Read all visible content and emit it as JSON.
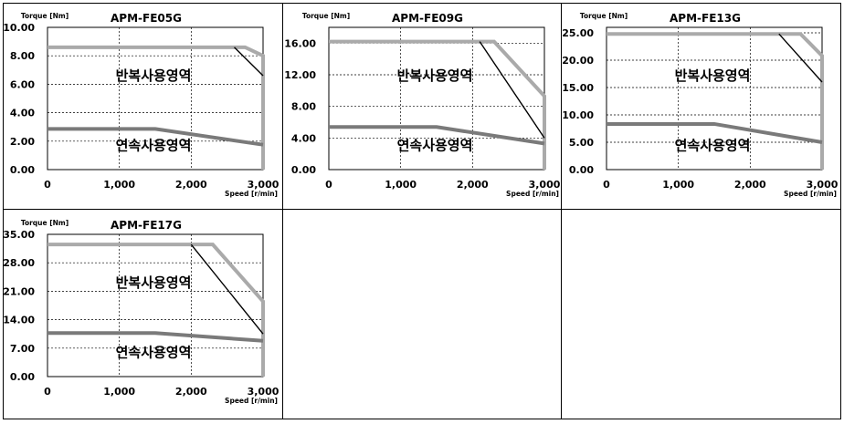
{
  "chart_data": [
    {
      "type": "line",
      "title": "APM-FE05G",
      "ylabel": "Torque [Nm]",
      "xlabel": "Speed [r/min]",
      "xlim": [
        0,
        3000
      ],
      "ylim": [
        0,
        10
      ],
      "yticks": [
        "0.00",
        "2.00",
        "4.00",
        "6.00",
        "8.00",
        "10.00"
      ],
      "xticks": [
        "0",
        "1,000",
        "2,000",
        "3,000"
      ],
      "zones": [
        "반복사용영역",
        "연속사용영역"
      ],
      "series": [
        {
          "role": "peak",
          "x": [
            0,
            2750,
            3000,
            3000
          ],
          "y": [
            8.6,
            8.6,
            8.0,
            0
          ]
        },
        {
          "role": "rated",
          "x": [
            0,
            1500,
            3000
          ],
          "y": [
            2.86,
            2.86,
            1.75
          ]
        },
        {
          "role": "limit",
          "x": [
            2600,
            3000
          ],
          "y": [
            8.6,
            6.6
          ]
        }
      ]
    },
    {
      "type": "line",
      "title": "APM-FE09G",
      "ylabel": "Torque [Nm]",
      "xlabel": "Speed [r/min]",
      "xlim": [
        0,
        3000
      ],
      "ylim": [
        0,
        18
      ],
      "yticks": [
        "0.00",
        "4.00",
        "8.00",
        "12.00",
        "16.00"
      ],
      "xticks": [
        "0",
        "1,000",
        "2,000",
        "3,000"
      ],
      "zones": [
        "반복사용영역",
        "연속사용영역"
      ],
      "series": [
        {
          "role": "peak",
          "x": [
            0,
            2300,
            3000,
            3000
          ],
          "y": [
            16.2,
            16.2,
            9.3,
            0
          ]
        },
        {
          "role": "rated",
          "x": [
            0,
            1500,
            3000
          ],
          "y": [
            5.39,
            5.39,
            3.3
          ]
        },
        {
          "role": "limit",
          "x": [
            2100,
            3000
          ],
          "y": [
            16.2,
            4.0
          ]
        }
      ]
    },
    {
      "type": "line",
      "title": "APM-FE13G",
      "ylabel": "Torque [Nm]",
      "xlabel": "Speed [r/min]",
      "xlim": [
        0,
        3000
      ],
      "ylim": [
        0,
        26
      ],
      "yticks": [
        "0.00",
        "5.00",
        "10.00",
        "15.00",
        "20.00",
        "25.00"
      ],
      "xticks": [
        "0",
        "1,000",
        "2,000",
        "3,000"
      ],
      "zones": [
        "반복사용영역",
        "연속사용영역"
      ],
      "series": [
        {
          "role": "peak",
          "x": [
            0,
            2700,
            3000,
            3000
          ],
          "y": [
            24.8,
            24.8,
            20.8,
            0
          ]
        },
        {
          "role": "rated",
          "x": [
            0,
            1500,
            3000
          ],
          "y": [
            8.34,
            8.34,
            5.0
          ]
        },
        {
          "role": "limit",
          "x": [
            2400,
            3000
          ],
          "y": [
            24.8,
            16.0
          ]
        }
      ]
    },
    {
      "type": "line",
      "title": "APM-FE17G",
      "ylabel": "Torque [Nm]",
      "xlabel": "Speed [r/min]",
      "xlim": [
        0,
        3000
      ],
      "ylim": [
        0,
        35
      ],
      "yticks": [
        "0.00",
        "7.00",
        "14.00",
        "21.00",
        "28.00",
        "35.00"
      ],
      "xticks": [
        "0",
        "1,000",
        "2,000",
        "3,000"
      ],
      "zones": [
        "반복사용영역",
        "연속사용영역"
      ],
      "series": [
        {
          "role": "peak",
          "x": [
            0,
            2300,
            3000,
            3000
          ],
          "y": [
            32.5,
            32.5,
            18.5,
            0
          ]
        },
        {
          "role": "rated",
          "x": [
            0,
            1500,
            3000
          ],
          "y": [
            10.7,
            10.7,
            8.8
          ]
        },
        {
          "role": "limit",
          "x": [
            2000,
            3000
          ],
          "y": [
            32.5,
            10.5
          ]
        }
      ]
    }
  ]
}
